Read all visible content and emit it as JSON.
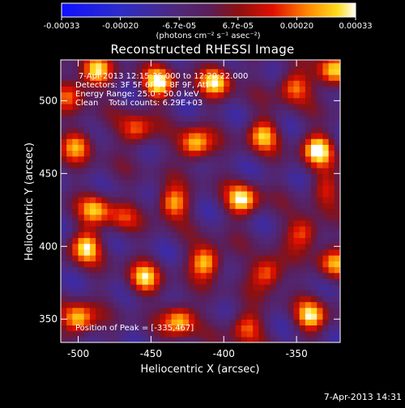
{
  "colorbar": {
    "min": -0.00033,
    "max": 0.00033,
    "tick_labels": [
      "-0.00033",
      "-0.00020",
      "-6.7e-05",
      "6.7e-05",
      "0.00020",
      "0.00033"
    ],
    "unit_label": "(photons cm⁻² s⁻¹ asec⁻²)"
  },
  "chart_data": {
    "type": "heatmap",
    "title": "Reconstructed RHESSI Image",
    "xlabel": "Heliocentric X (arcsec)",
    "ylabel": "Heliocentric Y (arcsec)",
    "xlim": [
      -512,
      -320
    ],
    "ylim": [
      334,
      528
    ],
    "x_ticks": [
      -500,
      -450,
      -400,
      -350
    ],
    "y_ticks": [
      350,
      400,
      450,
      500
    ],
    "x_tick_labels": [
      "-500",
      "-450",
      "-400",
      "-350"
    ],
    "y_tick_labels": [
      "350",
      "400",
      "450",
      "500"
    ],
    "colormap": "rhessi-blue-purple-red-yellow-white",
    "peak": [
      -335,
      467
    ],
    "blobs": [
      {
        "x": -488,
        "y": 520,
        "v": 0.85
      },
      {
        "x": -445,
        "y": 512,
        "v": 0.95
      },
      {
        "x": -405,
        "y": 514,
        "v": 0.9
      },
      {
        "x": -352,
        "y": 510,
        "v": 0.75
      },
      {
        "x": -325,
        "y": 520,
        "v": 0.95
      },
      {
        "x": -500,
        "y": 470,
        "v": 0.75
      },
      {
        "x": -460,
        "y": 480,
        "v": 0.7
      },
      {
        "x": -420,
        "y": 470,
        "v": 0.95
      },
      {
        "x": -373,
        "y": 477,
        "v": 0.8
      },
      {
        "x": -335,
        "y": 467,
        "v": 1.0
      },
      {
        "x": -488,
        "y": 426,
        "v": 0.75
      },
      {
        "x": -435,
        "y": 430,
        "v": 0.85
      },
      {
        "x": -387,
        "y": 432,
        "v": 0.95
      },
      {
        "x": -345,
        "y": 410,
        "v": 0.75
      },
      {
        "x": -495,
        "y": 400,
        "v": 0.9
      },
      {
        "x": -455,
        "y": 378,
        "v": 0.8
      },
      {
        "x": -412,
        "y": 390,
        "v": 0.95
      },
      {
        "x": -370,
        "y": 382,
        "v": 0.85
      },
      {
        "x": -325,
        "y": 388,
        "v": 0.7
      },
      {
        "x": -500,
        "y": 350,
        "v": 0.95
      },
      {
        "x": -430,
        "y": 350,
        "v": 0.9
      },
      {
        "x": -385,
        "y": 345,
        "v": 0.7
      },
      {
        "x": -340,
        "y": 352,
        "v": 0.85
      },
      {
        "x": -505,
        "y": 505,
        "v": 0.6
      },
      {
        "x": -470,
        "y": 420,
        "v": 0.45
      },
      {
        "x": -330,
        "y": 440,
        "v": 0.5
      }
    ]
  },
  "info": {
    "time_range": "7-Apr-2013 12:15:36.000 to 12:20:22.000",
    "detectors": "Detectors: 3F 5F 6F 7F 8F 9F, Att 0",
    "energy": "Energy Range: 25.0 - 50.0 keV",
    "method_counts": "Clean    Total counts: 6.29E+03",
    "peak_position": "Position of Peak = [-335,467]"
  },
  "footer": {
    "timestamp": "7-Apr-2013 14:31"
  }
}
